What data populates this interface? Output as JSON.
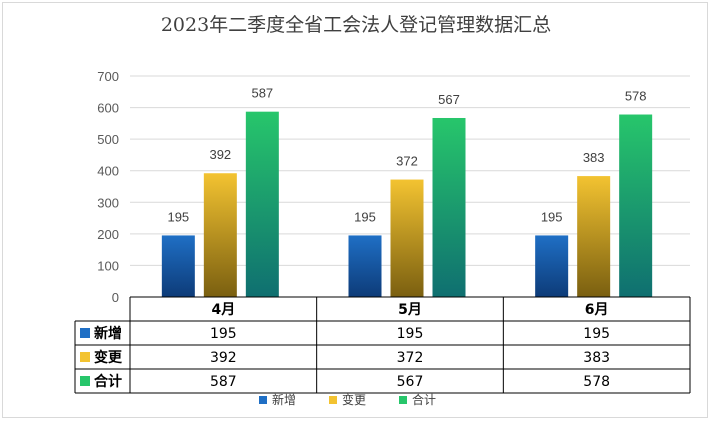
{
  "chart_data": {
    "type": "bar",
    "title": "2023年二季度全省工会法人登记管理数据汇总",
    "categories": [
      "4月",
      "5月",
      "6月"
    ],
    "series": [
      {
        "name": "新增",
        "values": [
          195,
          195,
          195
        ],
        "color": "#1f6fc5"
      },
      {
        "name": "变更",
        "values": [
          392,
          372,
          383
        ],
        "color": "#f3c331"
      },
      {
        "name": "合计",
        "values": [
          587,
          567,
          578
        ],
        "color": "#27c66b"
      }
    ],
    "ylim": [
      0,
      700
    ],
    "yticks": [
      0,
      100,
      200,
      300,
      400,
      500,
      600,
      700
    ],
    "grid": true,
    "legend_position": "bottom",
    "data_table": true
  }
}
